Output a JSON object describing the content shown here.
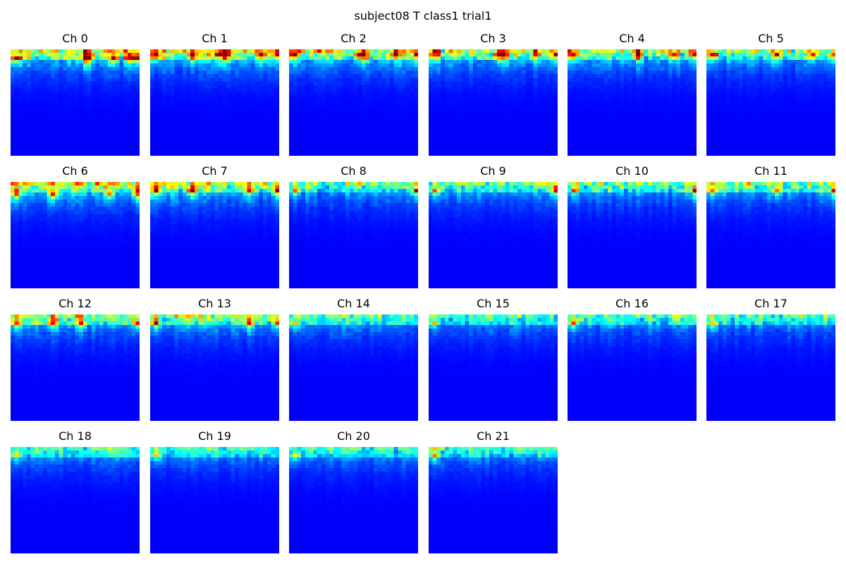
{
  "figure": {
    "title": "subject08 T class1 trial1"
  },
  "chart_data": {
    "type": "heatmap",
    "title": "subject08 T class1 trial1",
    "colormap": "jet",
    "grid": false,
    "axes": "off",
    "layout": {
      "rows": 4,
      "cols": 6
    },
    "grid_size": {
      "cols": 32,
      "rows": 30
    },
    "panels": [
      {
        "title": "Ch 0",
        "peak_cols": [
          1,
          18,
          19,
          25,
          29,
          31
        ],
        "hot_row": 2,
        "activity": 0.95
      },
      {
        "title": "Ch 1",
        "peak_cols": [
          1,
          10,
          17,
          18,
          27,
          31
        ],
        "hot_row": 1,
        "activity": 0.95
      },
      {
        "title": "Ch 2",
        "peak_cols": [
          1,
          17,
          18,
          26,
          31
        ],
        "hot_row": 1,
        "activity": 0.9
      },
      {
        "title": "Ch 3",
        "peak_cols": [
          1,
          17,
          18,
          26,
          31
        ],
        "hot_row": 1,
        "activity": 0.85
      },
      {
        "title": "Ch 4",
        "peak_cols": [
          1,
          17,
          26,
          31
        ],
        "hot_row": 1,
        "activity": 0.85
      },
      {
        "title": "Ch 5",
        "peak_cols": [
          1,
          17,
          26,
          31
        ],
        "hot_row": 1,
        "activity": 0.8
      },
      {
        "title": "Ch 6",
        "peak_cols": [
          1,
          10,
          24,
          31
        ],
        "hot_row": 3,
        "activity": 0.95
      },
      {
        "title": "Ch 7",
        "peak_cols": [
          1,
          10,
          24,
          31
        ],
        "hot_row": 2,
        "activity": 0.9
      },
      {
        "title": "Ch 8",
        "peak_cols": [
          1,
          31
        ],
        "hot_row": 2,
        "activity": 0.75
      },
      {
        "title": "Ch 9",
        "peak_cols": [
          1,
          31
        ],
        "hot_row": 2,
        "activity": 0.75
      },
      {
        "title": "Ch 10",
        "peak_cols": [
          1,
          31
        ],
        "hot_row": 2,
        "activity": 0.75
      },
      {
        "title": "Ch 11",
        "peak_cols": [
          1,
          17,
          31
        ],
        "hot_row": 2,
        "activity": 0.75
      },
      {
        "title": "Ch 12",
        "peak_cols": [
          1,
          10,
          17,
          31
        ],
        "hot_row": 2,
        "activity": 0.8
      },
      {
        "title": "Ch 13",
        "peak_cols": [
          1,
          24,
          31
        ],
        "hot_row": 2,
        "activity": 0.8
      },
      {
        "title": "Ch 14",
        "peak_cols": [
          1
        ],
        "hot_row": 2,
        "activity": 0.65
      },
      {
        "title": "Ch 15",
        "peak_cols": [
          1
        ],
        "hot_row": 2,
        "activity": 0.65
      },
      {
        "title": "Ch 16",
        "peak_cols": [
          1
        ],
        "hot_row": 2,
        "activity": 0.65
      },
      {
        "title": "Ch 17",
        "peak_cols": [
          1
        ],
        "hot_row": 2,
        "activity": 0.65
      },
      {
        "title": "Ch 18",
        "peak_cols": [
          1
        ],
        "hot_row": 2,
        "activity": 0.6
      },
      {
        "title": "Ch 19",
        "peak_cols": [
          1
        ],
        "hot_row": 2,
        "activity": 0.6
      },
      {
        "title": "Ch 20",
        "peak_cols": [
          1
        ],
        "hot_row": 2,
        "activity": 0.6
      },
      {
        "title": "Ch 21",
        "peak_cols": [
          1
        ],
        "hot_row": 2,
        "activity": 0.6
      }
    ]
  }
}
